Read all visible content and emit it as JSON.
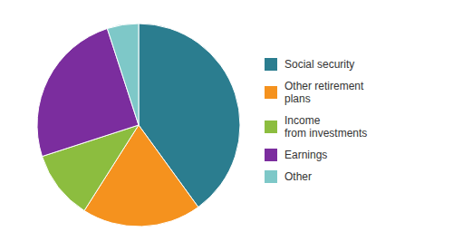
{
  "chart_data": {
    "type": "pie",
    "categories": [
      "Social security",
      "Other retirement\nplans",
      "Income\nfrom investments",
      "Earnings",
      "Other"
    ],
    "values": [
      40,
      19,
      11,
      25,
      5
    ],
    "colors": [
      "#2b7d8f",
      "#f5921e",
      "#8cbd3f",
      "#7b2d9e",
      "#7ec8c8"
    ],
    "legend": "right"
  }
}
